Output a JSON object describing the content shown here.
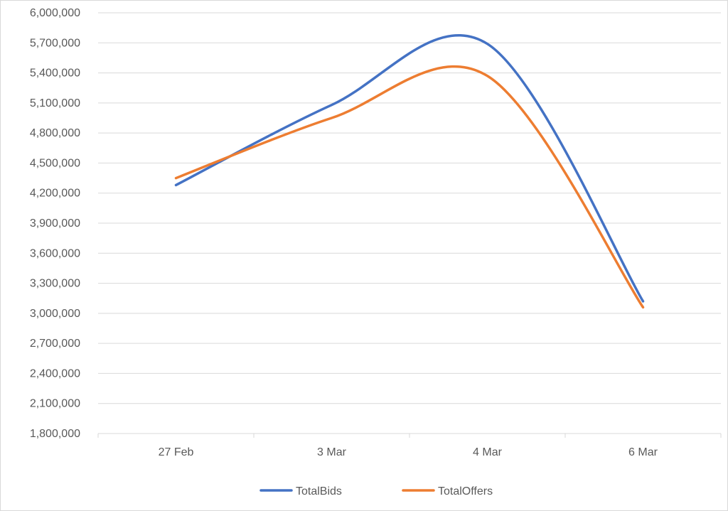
{
  "chart_data": {
    "type": "line",
    "smooth": true,
    "categories": [
      "27 Feb",
      "3 Mar",
      "4 Mar",
      "6 Mar"
    ],
    "ylim": [
      1800000,
      6000000
    ],
    "ytick_step": 300000,
    "yticks": [
      "1,800,000",
      "2,100,000",
      "2,400,000",
      "2,700,000",
      "3,000,000",
      "3,300,000",
      "3,600,000",
      "3,900,000",
      "4,200,000",
      "4,500,000",
      "4,800,000",
      "5,100,000",
      "5,400,000",
      "5,700,000",
      "6,000,000"
    ],
    "grid": true,
    "legend_position": "bottom",
    "series": [
      {
        "name": "TotalBids",
        "color": "#4472C4",
        "values": [
          4280000,
          5080000,
          5690000,
          3120000
        ]
      },
      {
        "name": "TotalOffers",
        "color": "#ED7D31",
        "values": [
          4350000,
          4950000,
          5370000,
          3060000
        ]
      }
    ]
  }
}
